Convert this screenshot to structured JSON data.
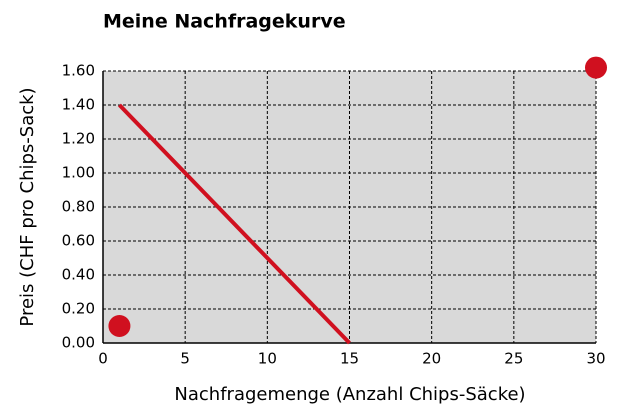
{
  "chart_data": {
    "type": "line",
    "title": "Meine Nachfragekurve",
    "xlabel": "Nachfragemenge (Anzahl Chips-Säcke)",
    "ylabel": "Preis (CHF pro Chips-Sack)",
    "xlim": [
      0,
      30
    ],
    "ylim": [
      0,
      1.6
    ],
    "xticks": [
      0,
      5,
      10,
      15,
      20,
      25,
      30
    ],
    "yticks": [
      {
        "value": 0,
        "label": "0.00"
      },
      {
        "value": 0.2,
        "label": "0.20"
      },
      {
        "value": 0.4,
        "label": "0.40"
      },
      {
        "value": 0.6,
        "label": "0.60"
      },
      {
        "value": 0.8,
        "label": "0.80"
      },
      {
        "value": 1.0,
        "label": "1.00"
      },
      {
        "value": 1.2,
        "label": "1.20"
      },
      {
        "value": 1.4,
        "label": "1.40"
      },
      {
        "value": 1.6,
        "label": "1.60"
      }
    ],
    "grid": true,
    "series": [
      {
        "type": "line",
        "color": "#d0101f",
        "x": [
          1,
          15
        ],
        "values": [
          1.4,
          0
        ]
      },
      {
        "type": "scatter",
        "color": "#d0101f",
        "x": [
          1,
          30
        ],
        "values": [
          0.1,
          1.62
        ]
      }
    ]
  }
}
